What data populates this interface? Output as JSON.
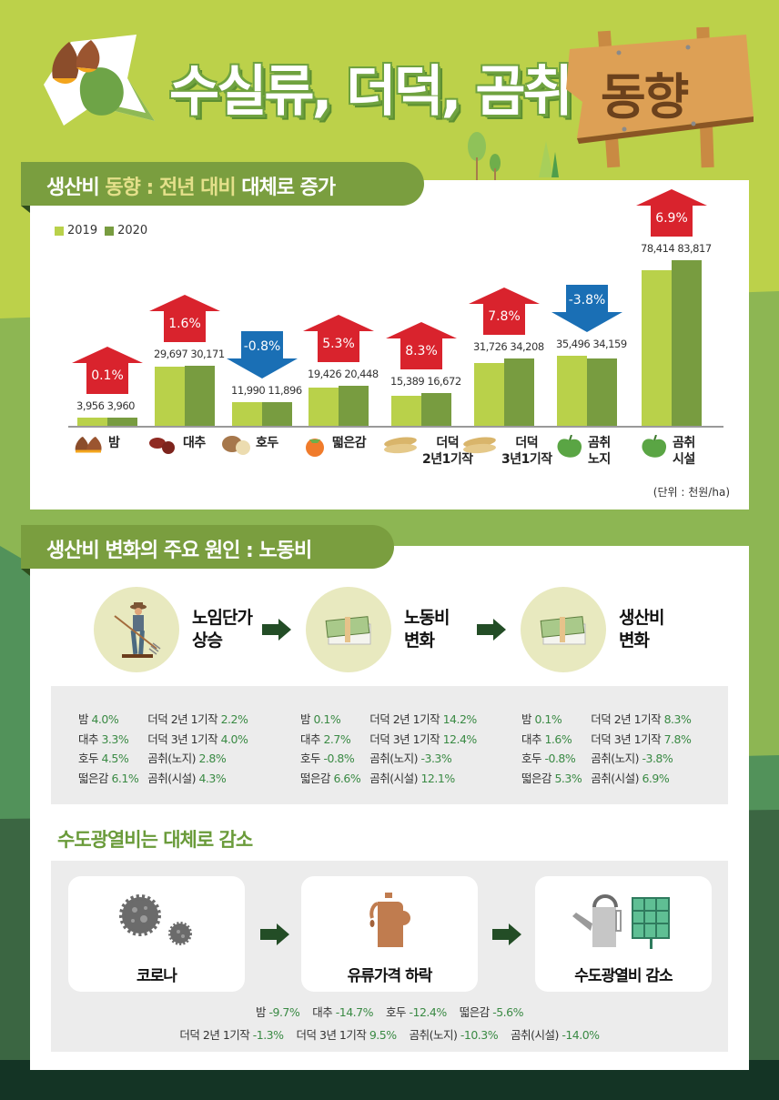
{
  "header": {
    "title": "수실류, 더덕, 곰취",
    "sign_text": "동향"
  },
  "section1": {
    "tab_prefix": "생산비 ",
    "tab_hl1": "동향 : 전년 대비",
    "tab_suffix": " 대체로 증가",
    "legend": [
      {
        "label": "2019",
        "color": "#b9d14a"
      },
      {
        "label": "2020",
        "color": "#789c40"
      }
    ],
    "unit": "(단위 : 천원/ha)"
  },
  "chart_data": {
    "type": "bar",
    "title": "생산비 동향 : 전년 대비 대체로 증가",
    "categories": [
      "밤",
      "대추",
      "호두",
      "떫은감",
      "더덕 2년1기작",
      "더덕 3년1기작",
      "곰취 노지",
      "곰취 시설"
    ],
    "series": [
      {
        "name": "2019",
        "color": "#b9d14a",
        "values": [
          3956,
          29697,
          11990,
          19426,
          15389,
          31726,
          35496,
          78414
        ]
      },
      {
        "name": "2020",
        "color": "#789c40",
        "values": [
          3960,
          30171,
          11896,
          20448,
          16672,
          34208,
          34159,
          83817
        ]
      }
    ],
    "value_labels_2019": [
      "3,956",
      "29,697",
      "11,990",
      "19,426",
      "15,389",
      "31,726",
      "35,496",
      "78,414"
    ],
    "value_labels_2020": [
      "3,960",
      "30,171",
      "11,896",
      "20,448",
      "16,672",
      "34,208",
      "34,159",
      "83,817"
    ],
    "change_pct": [
      "0.1%",
      "1.6%",
      "-0.8%",
      "5.3%",
      "8.3%",
      "7.8%",
      "-3.8%",
      "6.9%"
    ],
    "change_dir": [
      "up",
      "up",
      "down",
      "up",
      "up",
      "up",
      "down",
      "up"
    ],
    "up_color": "#d9232d",
    "down_color": "#1a6fb5",
    "xlabel": "",
    "ylabel": "천원/ha",
    "legend_position": "top-left",
    "grid": false
  },
  "categories_display": [
    {
      "line1": "밤",
      "line2": "",
      "icon": "chestnut-icon"
    },
    {
      "line1": "대추",
      "line2": "",
      "icon": "jujube-icon"
    },
    {
      "line1": "호두",
      "line2": "",
      "icon": "walnut-icon"
    },
    {
      "line1": "떫은감",
      "line2": "",
      "icon": "persimmon-icon"
    },
    {
      "line1": "더덕",
      "line2": "2년1기작",
      "icon": "deodeok-root-icon"
    },
    {
      "line1": "더덕",
      "line2": "3년1기작",
      "icon": "deodeok-root-icon"
    },
    {
      "line1": "곰취",
      "line2": "노지",
      "icon": "gomchwi-leaf-icon"
    },
    {
      "line1": "곰취",
      "line2": "시설",
      "icon": "gomchwi-leaf-icon"
    }
  ],
  "section2": {
    "tab": "생산비 변화의 주요 원인 : 노동비",
    "process": [
      {
        "line1": "노임단가",
        "line2": "상승",
        "icon": "farmer-icon"
      },
      {
        "line1": "노동비",
        "line2": "변화",
        "icon": "money-stack-icon"
      },
      {
        "line1": "생산비",
        "line2": "변화",
        "icon": "money-stack-icon"
      }
    ],
    "stats": [
      {
        "left": [
          [
            "밤",
            "4.0%"
          ],
          [
            "대추",
            "3.3%"
          ],
          [
            "호두",
            "4.5%"
          ],
          [
            "떫은감",
            "6.1%"
          ]
        ],
        "right": [
          [
            "더덕 2년 1기작",
            "2.2%"
          ],
          [
            "더덕 3년 1기작",
            "4.0%"
          ],
          [
            "곰취(노지)",
            "2.8%"
          ],
          [
            "곰취(시설)",
            "4.3%"
          ]
        ]
      },
      {
        "left": [
          [
            "밤",
            "0.1%"
          ],
          [
            "대추",
            "2.7%"
          ],
          [
            "호두",
            "-0.8%"
          ],
          [
            "떫은감",
            "6.6%"
          ]
        ],
        "right": [
          [
            "더덕 2년 1기작",
            "14.2%"
          ],
          [
            "더덕 3년 1기작",
            "12.4%"
          ],
          [
            "곰취(노지)",
            "-3.3%"
          ],
          [
            "곰취(시설)",
            "12.1%"
          ]
        ]
      },
      {
        "left": [
          [
            "밤",
            "0.1%"
          ],
          [
            "대추",
            "1.6%"
          ],
          [
            "호두",
            "-0.8%"
          ],
          [
            "떫은감",
            "5.3%"
          ]
        ],
        "right": [
          [
            "더덕 2년 1기작",
            "8.3%"
          ],
          [
            "더덕 3년 1기작",
            "7.8%"
          ],
          [
            "곰취(노지)",
            "-3.8%"
          ],
          [
            "곰취(시설)",
            "6.9%"
          ]
        ]
      }
    ]
  },
  "section3": {
    "heading": "수도광열비는 대체로 감소",
    "cards": [
      {
        "label": "코로나",
        "icon": "virus-icon"
      },
      {
        "label": "유류가격 하락",
        "icon": "oil-can-icon"
      },
      {
        "label": "수도광열비 감소",
        "icon": "watering-can-solar-panel-icon"
      }
    ],
    "stats_row1": [
      [
        "밤",
        "-9.7%"
      ],
      [
        "대추",
        "-14.7%"
      ],
      [
        "호두",
        "-12.4%"
      ],
      [
        "떫은감",
        "-5.6%"
      ]
    ],
    "stats_row2": [
      [
        "더덕 2년 1기작",
        "-1.3%"
      ],
      [
        "더덕 3년 1기작",
        "9.5%"
      ],
      [
        "곰취(노지)",
        "-10.3%"
      ],
      [
        "곰취(시설)",
        "-14.0%"
      ]
    ]
  }
}
